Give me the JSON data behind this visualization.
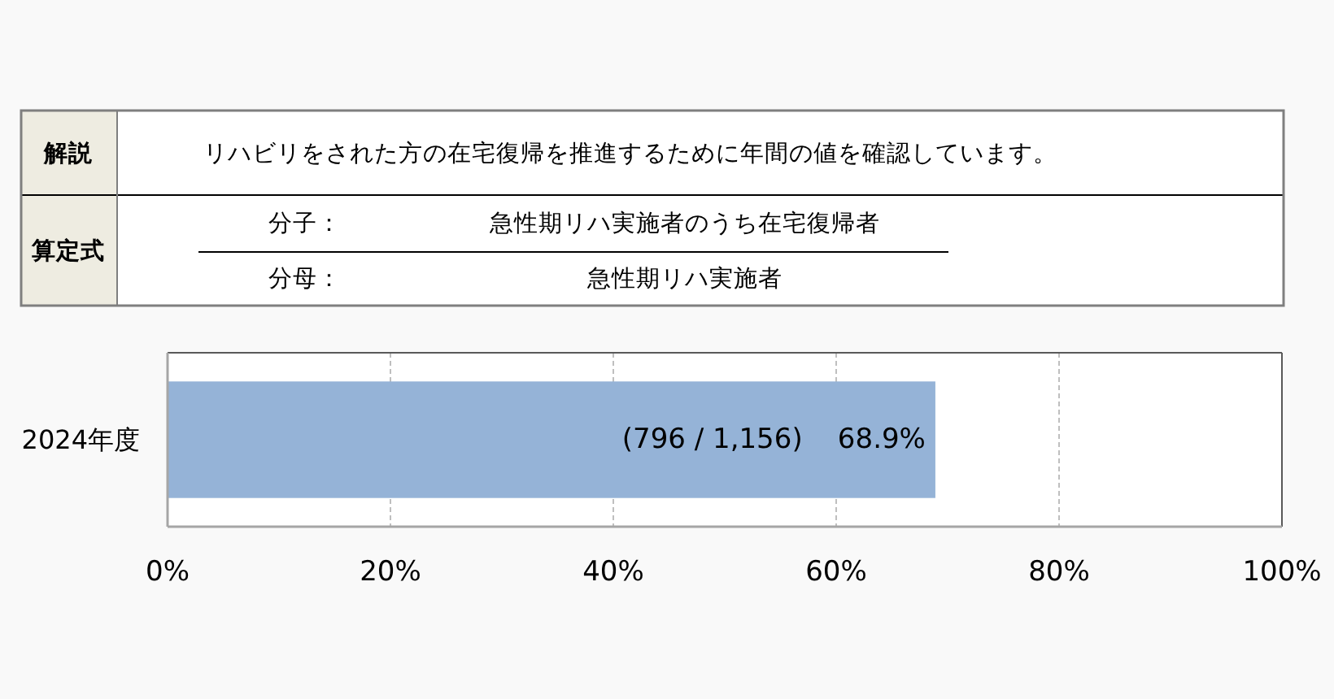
{
  "chart_data": [
    {
      "type": "other",
      "annotations": [
        "解説",
        "リハビリをされた方の在宅復帰を推進するために年間の値を確認しています。",
        "算定式",
        "分子：",
        "急性期リハ実施者のうち在宅復帰者",
        "分母：",
        "急性期リハ実施者"
      ]
    },
    {
      "type": "bar",
      "orientation": "horizontal",
      "categories": [
        "2024年度"
      ],
      "values": [
        68.9
      ],
      "color": "#95b3d7",
      "value_labels": [
        "(796 / 1,156)    68.9%"
      ],
      "xlim": [
        0,
        100
      ],
      "xticks": [
        {
          "value": 0,
          "label": "0%"
        },
        {
          "value": 20,
          "label": "20%"
        },
        {
          "value": 40,
          "label": "40%"
        },
        {
          "value": 60,
          "label": "60%"
        },
        {
          "value": 80,
          "label": "80%"
        },
        {
          "value": 100,
          "label": "100%"
        }
      ],
      "grid": "x"
    }
  ]
}
